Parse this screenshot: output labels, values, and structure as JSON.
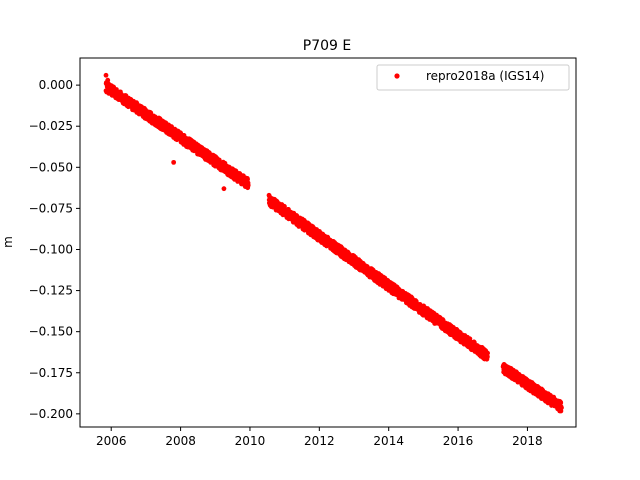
{
  "chart_data": {
    "type": "scatter",
    "title": "P709 E",
    "xlabel": "",
    "ylabel": "m",
    "xlim": [
      2005.1,
      2019.4
    ],
    "ylim": [
      -0.208,
      0.0165
    ],
    "x_ticks": [
      2006,
      2008,
      2010,
      2012,
      2014,
      2016,
      2018
    ],
    "x_tick_labels": [
      "2006",
      "2008",
      "2010",
      "2012",
      "2014",
      "2016",
      "2018"
    ],
    "y_ticks": [
      0.0,
      -0.025,
      -0.05,
      -0.075,
      -0.1,
      -0.125,
      -0.15,
      -0.175,
      -0.2
    ],
    "y_tick_labels": [
      "0.000",
      "−0.025",
      "−0.050",
      "−0.075",
      "−0.100",
      "−0.125",
      "−0.150",
      "−0.175",
      "−0.200"
    ],
    "grid": false,
    "legend_position": "top-right",
    "series": [
      {
        "name": "repro2018a (IGS14)",
        "color": "#ff0000",
        "marker": "point",
        "segments": [
          {
            "x_start": 2005.85,
            "x_end": 2009.95,
            "y_start": -0.001,
            "y_end": -0.06
          },
          {
            "x_start": 2010.55,
            "x_end": 2016.85,
            "y_start": -0.07,
            "y_end": -0.165
          },
          {
            "x_start": 2017.3,
            "x_end": 2018.98,
            "y_start": -0.172,
            "y_end": -0.196
          }
        ],
        "points": [
          {
            "x": 2005.85,
            "y": 0.006
          },
          {
            "x": 2005.9,
            "y": 0.003
          },
          {
            "x": 2007.8,
            "y": -0.047
          },
          {
            "x": 2009.25,
            "y": -0.063
          }
        ]
      }
    ]
  }
}
